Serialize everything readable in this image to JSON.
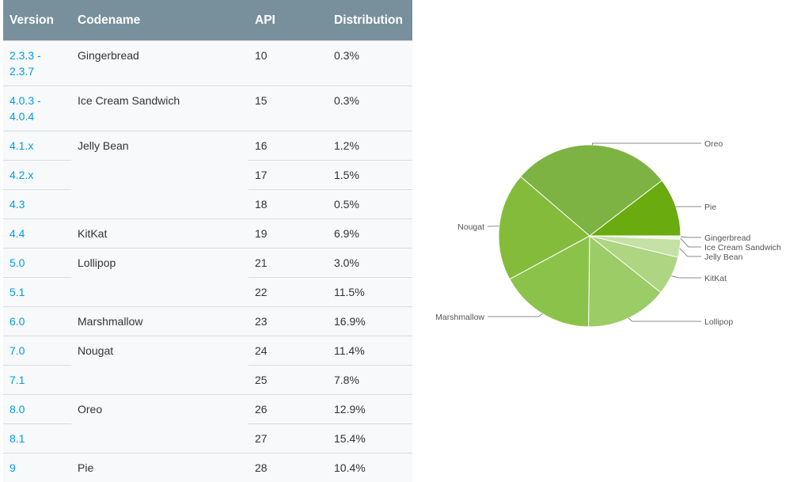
{
  "table": {
    "headers": [
      "Version",
      "Codename",
      "API",
      "Distribution"
    ],
    "rows": [
      {
        "version": "2.3.3 -\n2.3.7",
        "codename": "Gingerbread",
        "api": "10",
        "dist": "0.3%"
      },
      {
        "version": "4.0.3 -\n4.0.4",
        "codename": "Ice Cream Sandwich",
        "api": "15",
        "dist": "0.3%"
      },
      {
        "version": "4.1.x",
        "codename": "Jelly Bean",
        "api": "16",
        "dist": "1.2%"
      },
      {
        "version": "4.2.x",
        "codename": "",
        "api": "17",
        "dist": "1.5%"
      },
      {
        "version": "4.3",
        "codename": "",
        "api": "18",
        "dist": "0.5%"
      },
      {
        "version": "4.4",
        "codename": "KitKat",
        "api": "19",
        "dist": "6.9%"
      },
      {
        "version": "5.0",
        "codename": "Lollipop",
        "api": "21",
        "dist": "3.0%"
      },
      {
        "version": "5.1",
        "codename": "",
        "api": "22",
        "dist": "11.5%"
      },
      {
        "version": "6.0",
        "codename": "Marshmallow",
        "api": "23",
        "dist": "16.9%"
      },
      {
        "version": "7.0",
        "codename": "Nougat",
        "api": "24",
        "dist": "11.4%"
      },
      {
        "version": "7.1",
        "codename": "",
        "api": "25",
        "dist": "7.8%"
      },
      {
        "version": "8.0",
        "codename": "Oreo",
        "api": "26",
        "dist": "12.9%"
      },
      {
        "version": "8.1",
        "codename": "",
        "api": "27",
        "dist": "15.4%"
      },
      {
        "version": "9",
        "codename": "Pie",
        "api": "28",
        "dist": "10.4%"
      }
    ]
  },
  "chart_data": {
    "type": "pie",
    "slices": [
      {
        "label": "Gingerbread",
        "value": 0.3,
        "color": "#f1f8e9"
      },
      {
        "label": "Ice Cream Sandwich",
        "value": 0.3,
        "color": "#dcedc8"
      },
      {
        "label": "Jelly Bean",
        "value": 3.2,
        "color": "#c5e1a5"
      },
      {
        "label": "KitKat",
        "value": 6.9,
        "color": "#aed581"
      },
      {
        "label": "Lollipop",
        "value": 14.5,
        "color": "#9ccc65"
      },
      {
        "label": "Marshmallow",
        "value": 16.9,
        "color": "#8bc34a"
      },
      {
        "label": "Nougat",
        "value": 19.2,
        "color": "#85bb3a"
      },
      {
        "label": "Oreo",
        "value": 28.3,
        "color": "#7cb342"
      },
      {
        "label": "Pie",
        "value": 10.4,
        "color": "#6aab10"
      }
    ],
    "start": "3 o'clock, clockwise"
  }
}
